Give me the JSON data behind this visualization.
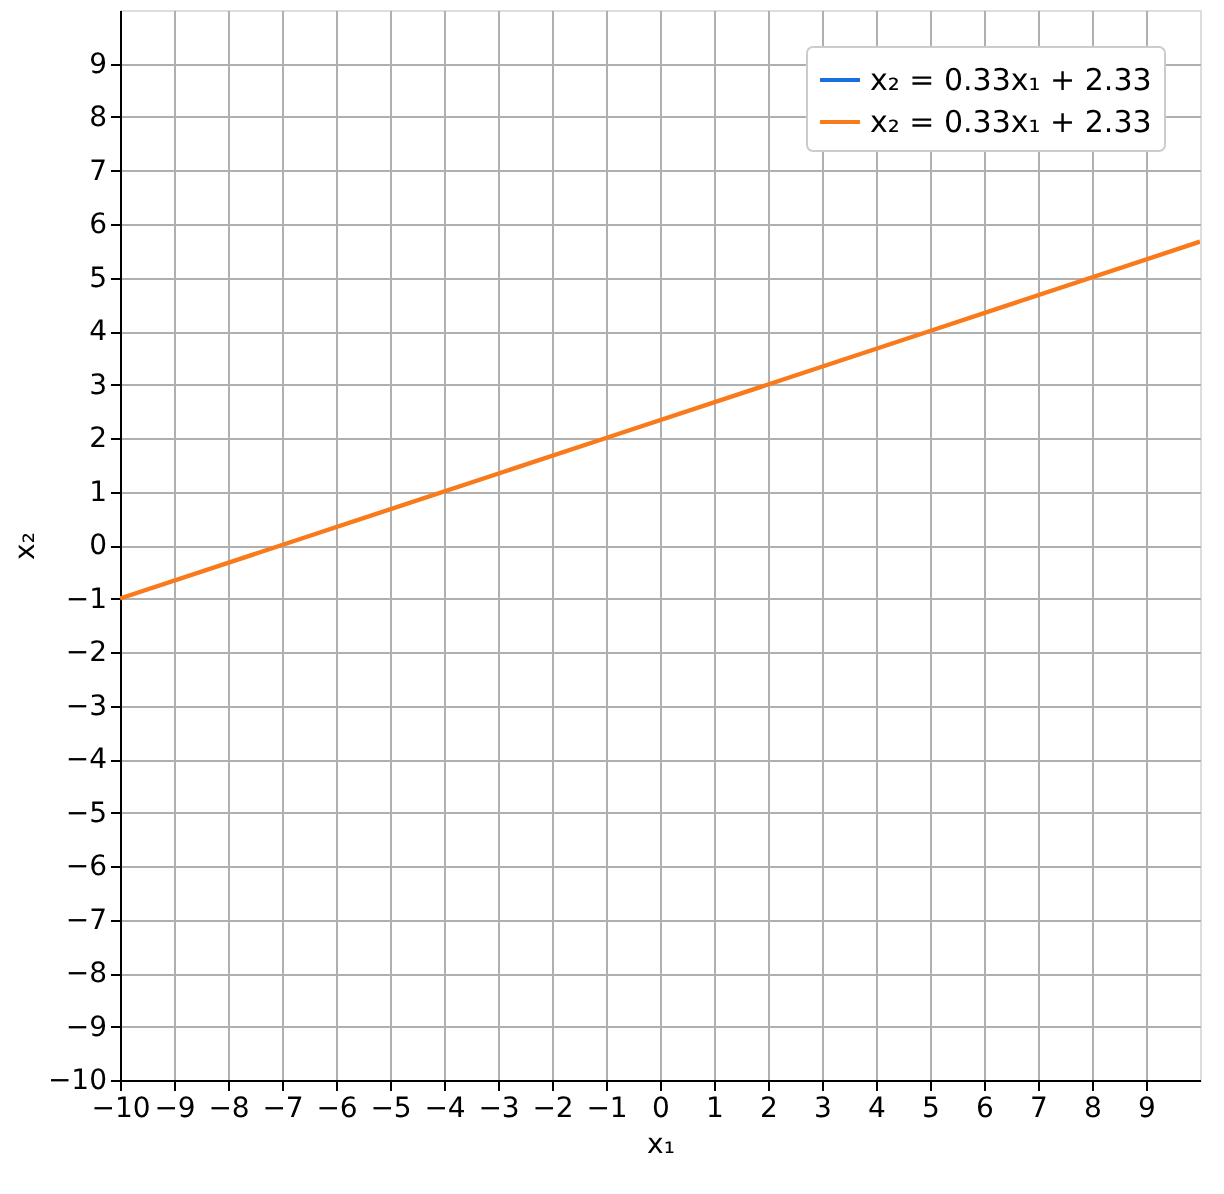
{
  "chart_data": {
    "type": "line",
    "xlabel": "x₁",
    "ylabel": "x₂",
    "x": [
      -10,
      -7,
      -1,
      5,
      10
    ],
    "series": [
      {
        "name": "x₂ = 0.33x₁ + 2.33",
        "color": "#1a6fdf",
        "values": [
          null,
          null,
          null,
          null,
          null
        ]
      },
      {
        "name": "x₂ = 0.33x₁ + 2.33",
        "color": "#f97a1b",
        "values": [
          -1,
          0,
          2,
          4,
          5.67
        ]
      }
    ],
    "xlim": [
      -10,
      10
    ],
    "xticks": [
      -10,
      -9,
      -8,
      -7,
      -6,
      -5,
      -4,
      -3,
      -2,
      -1,
      0,
      1,
      2,
      3,
      4,
      5,
      6,
      7,
      8,
      9
    ],
    "ylim": [
      -10,
      10
    ],
    "yticks": [
      -10,
      -9,
      -8,
      -7,
      -6,
      -5,
      -4,
      -3,
      -2,
      -1,
      0,
      1,
      2,
      3,
      4,
      5,
      6,
      7,
      8,
      9
    ],
    "grid": true,
    "legend": "top right",
    "marker": "none",
    "line_style": "solid"
  }
}
